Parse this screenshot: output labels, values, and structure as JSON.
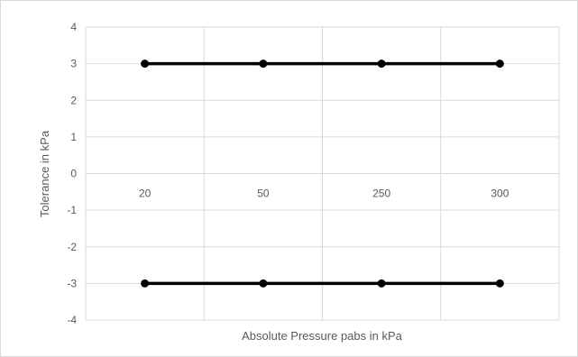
{
  "chart_data": {
    "type": "line",
    "title": "",
    "xlabel": "Absolute Pressure pabs in kPa",
    "ylabel": "Tolerance in kPa",
    "categories": [
      "20",
      "50",
      "250",
      "300"
    ],
    "ylim": [
      -4,
      4
    ],
    "yticks": [
      4,
      3,
      2,
      1,
      0,
      -1,
      -2,
      -3,
      -4
    ],
    "grid": true,
    "legend": "none",
    "category_label_position": "at y=0 axis",
    "series": [
      {
        "values": [
          3,
          3,
          3,
          3
        ],
        "color": "#000000",
        "marker": "circle"
      },
      {
        "values": [
          -3,
          -3,
          -3,
          -3
        ],
        "color": "#000000",
        "marker": "circle"
      }
    ],
    "colors": {
      "line": "#000000",
      "grid": "#d9d9d9",
      "border": "#d9d9d9",
      "text": "#595959"
    }
  }
}
